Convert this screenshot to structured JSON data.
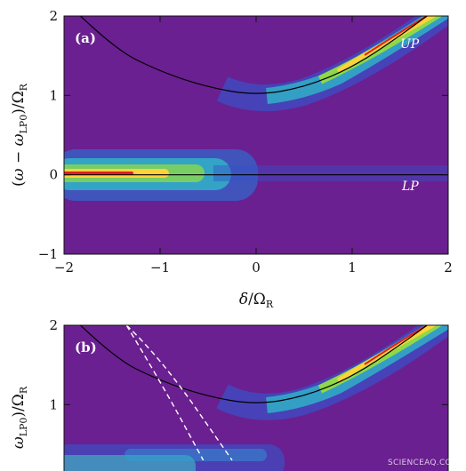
{
  "chart_data": [
    {
      "type": "heatmap",
      "panel_label": "(a)",
      "xlabel": "δ/Ω_R",
      "ylabel": "(ω − ω_LP0)/Ω_R",
      "xlim": [
        -2,
        2
      ],
      "ylim": [
        -1,
        2
      ],
      "xticks": [
        -2,
        -1,
        0,
        1,
        2
      ],
      "xtick_labels": [
        "−2",
        "−1",
        "0",
        "1",
        "2"
      ],
      "yticks": [
        -1,
        0,
        1,
        2
      ],
      "ytick_labels": [
        "−1",
        "0",
        "1",
        "2"
      ],
      "colormap": "spectral (purple background → blue → green → yellow → red peak)",
      "annotations": [
        "UP",
        "LP"
      ],
      "curves": [
        {
          "name": "UP",
          "color": "#000000",
          "points": [
            [
              -2,
              2.2
            ],
            [
              -1.5,
              1.6
            ],
            [
              -1,
              1.3
            ],
            [
              -0.5,
              1.1
            ],
            [
              0,
              1.0
            ],
            [
              0.5,
              1.1
            ],
            [
              1,
              1.35
            ],
            [
              1.5,
              1.75
            ],
            [
              2,
              2.2
            ]
          ]
        },
        {
          "name": "LP",
          "color": "#000000",
          "points": [
            [
              -2,
              0
            ],
            [
              2,
              0
            ]
          ]
        }
      ]
    },
    {
      "type": "heatmap",
      "panel_label": "(b)",
      "ylabel": "ω_LP0)/Ω_R",
      "xlim": [
        -2,
        2
      ],
      "ylim": [
        -1,
        2
      ],
      "yticks": [
        1,
        2
      ],
      "ytick_labels": [
        "1",
        "2"
      ],
      "colormap": "spectral (purple background → blue → green → yellow → red peak)",
      "curves": [
        {
          "name": "UP",
          "color": "#000000",
          "points": [
            [
              -2,
              2.2
            ],
            [
              -1.5,
              1.6
            ],
            [
              -1,
              1.3
            ],
            [
              -0.5,
              1.1
            ],
            [
              0,
              1.0
            ],
            [
              0.5,
              1.1
            ],
            [
              1,
              1.35
            ],
            [
              1.5,
              1.75
            ],
            [
              2,
              2.2
            ]
          ]
        },
        {
          "name": "",
          "color": "#ffffff",
          "dashed": true,
          "points": [
            [
              -1.35,
              2.0
            ],
            [
              -1.0,
              1.3
            ],
            [
              -0.55,
              0.3
            ]
          ]
        },
        {
          "name": "",
          "color": "#ffffff",
          "dashed": true,
          "points": [
            [
              -1.35,
              2.0
            ],
            [
              -1.0,
              1.6
            ],
            [
              -0.25,
              0.3
            ]
          ]
        }
      ]
    }
  ],
  "watermark": "SCIENCEAQ.COM"
}
